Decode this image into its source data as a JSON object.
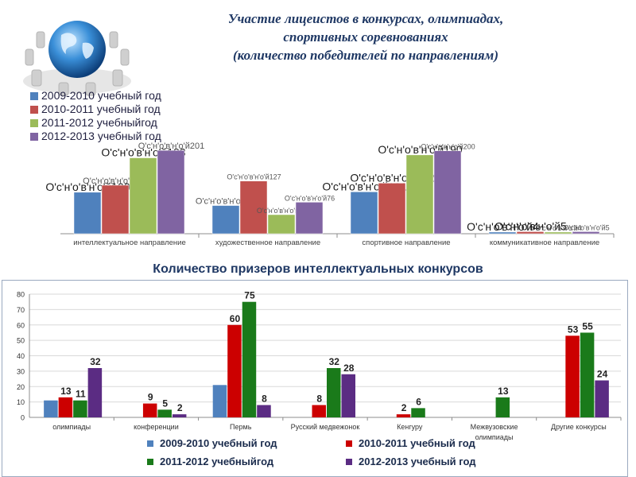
{
  "title": {
    "line1": "Участие лицеистов в конкурсах, олимпиадах,",
    "line2": "спортивных соревнованиях",
    "line3": "(количество победителей по направлениям)"
  },
  "subtitle": "Количество призеров интеллектуальных конкурсов",
  "colors": {
    "s2009": "#4f81bd",
    "s2010": "#c0504d",
    "s2011": "#9bbb59",
    "s2012": "#8064a2",
    "b2009": "#4f81bd",
    "b2010": "#cc0000",
    "b2011": "#1a7a1a",
    "b2012": "#5b2c83",
    "title": "#1f3864"
  },
  "chart_data": [
    {
      "type": "bar",
      "categories": [
        "интеллектуальное направление",
        "художественное направление",
        "спортивное направление",
        "коммуникативное направление"
      ],
      "series": [
        {
          "name": "2009-2010 учебный год",
          "values": [
            100,
            68,
            101,
            4
          ]
        },
        {
          "name": "2010-2011 учебный год",
          "values": [
            117,
            127,
            122,
            5
          ]
        },
        {
          "name": "2011-2012 учебныйгод",
          "values": [
            183,
            46,
            190,
            4
          ]
        },
        {
          "name": "2012-2013 учебный год",
          "values": [
            201,
            76,
            200,
            5
          ]
        }
      ],
      "data_labels": [
        [
          "О'с'н'о'в'н'о'й100",
          "О'с'н'о'в'н'о'й68",
          "О'с'н'о'в'н'о'й101",
          "О'с'н'о'в'н'о'й4"
        ],
        [
          "О'с'н'о'в'н'о'й117",
          "О'с'н'о'в'н'о'й127",
          "О'с'н'о'в'н'о'й122",
          "О'с'н'о'в'н'о'й5"
        ],
        [
          "О'с'н'о'в'н'о'й183",
          "О'с'н'о'в'н'о'й46",
          "О'с'н'о'в'н'о'й190",
          "О'с'н'о'в'н'о'й4"
        ],
        [
          "О'с'н'о'в'н'о'й201",
          "О'с'н'о'в'н'о'й76",
          "О'с'н'о'в'н'о'й200",
          "О'с'н'о'в'н'о'й5"
        ]
      ],
      "ylim": [
        0,
        230
      ],
      "legend": "top-left",
      "grid": false
    },
    {
      "type": "bar",
      "title": "Количество призеров интеллектуальных конкурсов",
      "categories": [
        "олимпиады",
        "конференции",
        "Пермь",
        "Русский медвежонок",
        "Кенгуру",
        "Межвузовские олимпиады",
        "Другие конкурсы"
      ],
      "series": [
        {
          "name": "2009-2010 учебный год",
          "values": [
            11,
            null,
            21,
            null,
            null,
            null,
            null
          ]
        },
        {
          "name": "2010-2011 учебный год",
          "values": [
            13,
            9,
            60,
            8,
            2,
            null,
            53
          ]
        },
        {
          "name": "2011-2012 учебныйгод",
          "values": [
            11,
            5,
            75,
            32,
            6,
            13,
            55
          ]
        },
        {
          "name": "2012-2013 учебный год",
          "values": [
            32,
            2,
            8,
            28,
            null,
            null,
            24
          ]
        }
      ],
      "labeled": [
        [
          false,
          false,
          false,
          false,
          false,
          false,
          false
        ],
        [
          true,
          true,
          true,
          true,
          true,
          false,
          true
        ],
        [
          true,
          true,
          true,
          true,
          true,
          true,
          true
        ],
        [
          true,
          true,
          true,
          true,
          false,
          false,
          true
        ]
      ],
      "yticks": [
        0,
        10,
        20,
        30,
        40,
        50,
        60,
        70,
        80
      ],
      "ylim": [
        0,
        80
      ],
      "grid": true,
      "legend": "bottom"
    }
  ]
}
